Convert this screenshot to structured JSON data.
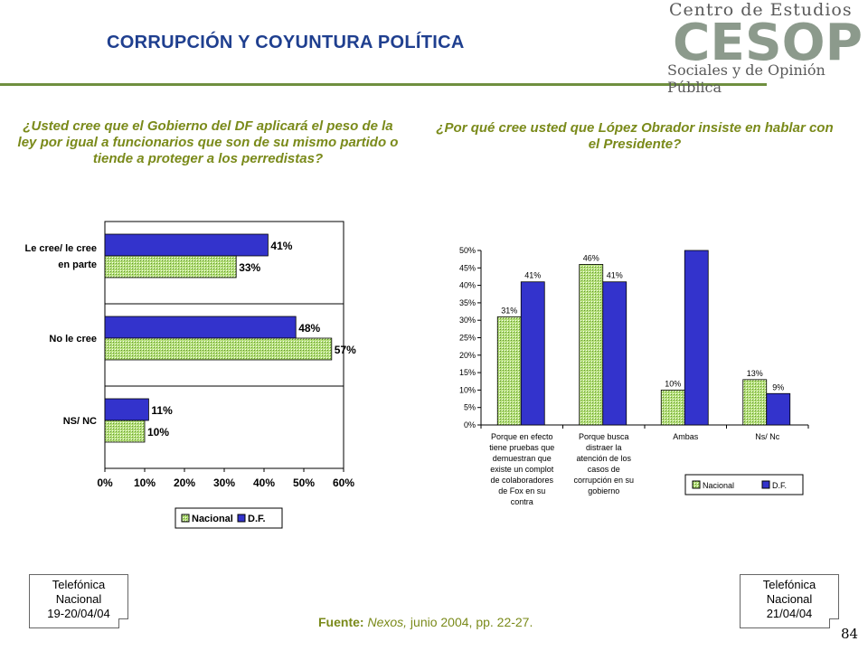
{
  "header": {
    "title": "CORRUPCIÓN Y COYUNTURA  POLÍTICA",
    "logo_top": "Centro de Estudios",
    "logo_mark": "CESOP",
    "logo_bottom": "Sociales y de Opinión Pública"
  },
  "questions": {
    "left": "¿Usted cree que el Gobierno del DF aplicará el peso de la ley por igual a funcionarios que son de su mismo partido o tiende a proteger a los perredistas?",
    "right": "¿Por qué cree usted que López Obrador insiste en hablar con el Presidente?"
  },
  "notes": {
    "left": [
      "Telefónica",
      "Nacional",
      "19-20/04/04"
    ],
    "right": [
      "Telefónica",
      "Nacional",
      "21/04/04"
    ]
  },
  "source": {
    "label": "Fuente:",
    "publication": "Nexos,",
    "detail": " junio 2004, pp. 22-27."
  },
  "page_number": "84",
  "colors": {
    "nacional": "#b5e07a",
    "df": "#3333cc",
    "accent": "#7a8a1a",
    "title": "#1f3f8f"
  },
  "chart_data": [
    {
      "type": "bar",
      "orientation": "horizontal",
      "categories": [
        [
          "Le cree/ le cree",
          "en parte"
        ],
        [
          "No le cree"
        ],
        [
          "NS/ NC"
        ]
      ],
      "series": [
        {
          "name": "D.F.",
          "values": [
            41,
            48,
            11
          ]
        },
        {
          "name": "Nacional",
          "values": [
            33,
            57,
            10
          ]
        }
      ],
      "data_labels": {
        "D.F.": [
          "41%",
          "48%",
          "11%"
        ],
        "Nacional": [
          "33%",
          "57%",
          "10%"
        ]
      },
      "xlim": [
        0,
        60
      ],
      "xticks": [
        "0%",
        "10%",
        "20%",
        "30%",
        "40%",
        "50%",
        "60%"
      ],
      "grid": true,
      "legend": [
        "Nacional",
        "D.F."
      ],
      "legend_position": "bottom"
    },
    {
      "type": "bar",
      "orientation": "vertical",
      "categories": [
        [
          "Porque en efecto",
          "tiene pruebas que",
          "demuestran que",
          "existe un complot",
          "de colaboradores",
          "de Fox en su",
          "contra"
        ],
        [
          "Porque busca",
          "distraer la",
          "atención de los",
          "casos de",
          "corrupción en su",
          "gobierno"
        ],
        [
          "Ambas"
        ],
        [
          "Ns/ Nc"
        ]
      ],
      "series": [
        {
          "name": "Nacional",
          "values": [
            31,
            46,
            10,
            13
          ]
        },
        {
          "name": "D.F.",
          "values": [
            41,
            41,
            50,
            9
          ]
        }
      ],
      "data_labels": {
        "Nacional": [
          "31%",
          "46%",
          "10%",
          "13%"
        ],
        "D.F.": [
          "41%",
          "41%",
          "",
          "9%"
        ]
      },
      "ylim": [
        0,
        50
      ],
      "yticks": [
        "0%",
        "5%",
        "10%",
        "15%",
        "20%",
        "25%",
        "30%",
        "35%",
        "40%",
        "45%",
        "50%"
      ],
      "grid": false,
      "legend": [
        "Nacional",
        "D.F."
      ],
      "legend_position": "bottom-right"
    }
  ]
}
